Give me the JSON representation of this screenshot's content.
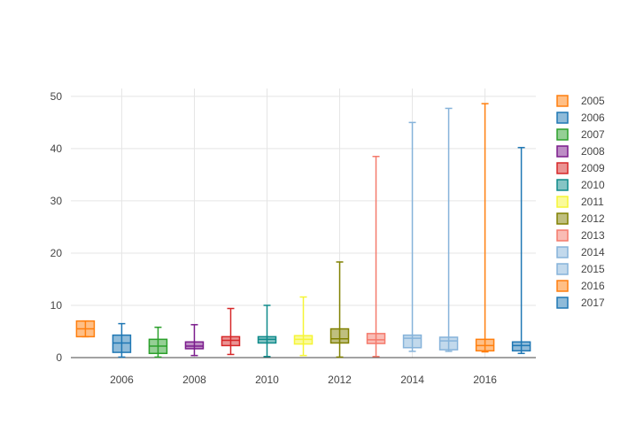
{
  "chart_data": {
    "type": "box",
    "title": "",
    "xlabel": "",
    "ylabel": "",
    "xlim": [
      2004.6,
      2017.4
    ],
    "ylim": [
      0,
      51.5
    ],
    "x_ticks": [
      2006,
      2008,
      2010,
      2012,
      2014,
      2016
    ],
    "y_ticks": [
      0,
      10,
      20,
      30,
      40,
      50
    ],
    "grid": true,
    "legend_position": "right",
    "series": [
      {
        "name": "2005",
        "x": 2005,
        "color": "#ff7f0e",
        "min": 4.0,
        "q1": 4.0,
        "median": 5.5,
        "q3": 7.0,
        "max": 7.0
      },
      {
        "name": "2006",
        "x": 2006,
        "color": "#1f77b4",
        "min": 0.1,
        "q1": 1.0,
        "median": 2.8,
        "q3": 4.3,
        "max": 6.5
      },
      {
        "name": "2007",
        "x": 2007,
        "color": "#2ca02c",
        "min": 0.1,
        "q1": 0.8,
        "median": 2.2,
        "q3": 3.5,
        "max": 5.8
      },
      {
        "name": "2008",
        "x": 2008,
        "color": "#7b1c8c",
        "min": 0.4,
        "q1": 1.7,
        "median": 2.2,
        "q3": 3.0,
        "max": 6.3
      },
      {
        "name": "2009",
        "x": 2009,
        "color": "#d62728",
        "min": 0.6,
        "q1": 2.3,
        "median": 3.3,
        "q3": 4.0,
        "max": 9.4
      },
      {
        "name": "2010",
        "x": 2010,
        "color": "#0e8a8a",
        "min": 0.2,
        "q1": 2.8,
        "median": 3.5,
        "q3": 4.0,
        "max": 10.0
      },
      {
        "name": "2011",
        "x": 2011,
        "color": "#f5f536",
        "min": 0.4,
        "q1": 2.6,
        "median": 3.5,
        "q3": 4.2,
        "max": 11.6
      },
      {
        "name": "2012",
        "x": 2012,
        "color": "#808000",
        "min": 0.1,
        "q1": 2.8,
        "median": 3.6,
        "q3": 5.5,
        "max": 18.3
      },
      {
        "name": "2013",
        "x": 2013,
        "color": "#f47a6c",
        "min": 0.2,
        "q1": 2.7,
        "median": 3.4,
        "q3": 4.6,
        "max": 38.5
      },
      {
        "name": "2014",
        "x": 2014,
        "color": "#86b3da",
        "min": 1.2,
        "q1": 1.9,
        "median": 3.7,
        "q3": 4.3,
        "max": 45.0
      },
      {
        "name": "2015",
        "x": 2015,
        "color": "#86b3da",
        "min": 1.2,
        "q1": 1.5,
        "median": 3.2,
        "q3": 3.9,
        "max": 47.7
      },
      {
        "name": "2016",
        "x": 2016,
        "color": "#ff7f0e",
        "min": 1.1,
        "q1": 1.3,
        "median": 2.3,
        "q3": 3.5,
        "max": 48.6
      },
      {
        "name": "2017",
        "x": 2017,
        "color": "#1f77b4",
        "min": 0.8,
        "q1": 1.3,
        "median": 2.3,
        "q3": 3.0,
        "max": 40.2
      }
    ]
  }
}
